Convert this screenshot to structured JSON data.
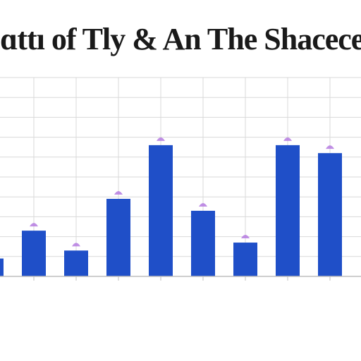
{
  "chart_data": {
    "type": "bar",
    "title": "ɑttı of Tly & An The Shacecer",
    "subtitle": "",
    "categories": [
      "",
      "",
      "",
      "",
      "",
      "",
      "",
      "",
      ""
    ],
    "values": [
      9,
      23,
      13,
      39,
      66,
      33,
      17,
      66,
      62
    ],
    "partial_left_value": 9,
    "ylim": [
      0,
      100
    ],
    "grid": true,
    "xlabel": "",
    "ylabel": "",
    "colors": {
      "bar": "#1f4fc8",
      "marker": "#b57be0",
      "grid": "#d9d9d9",
      "axis": "#bdbdbd",
      "tick_text": "#666666"
    }
  }
}
